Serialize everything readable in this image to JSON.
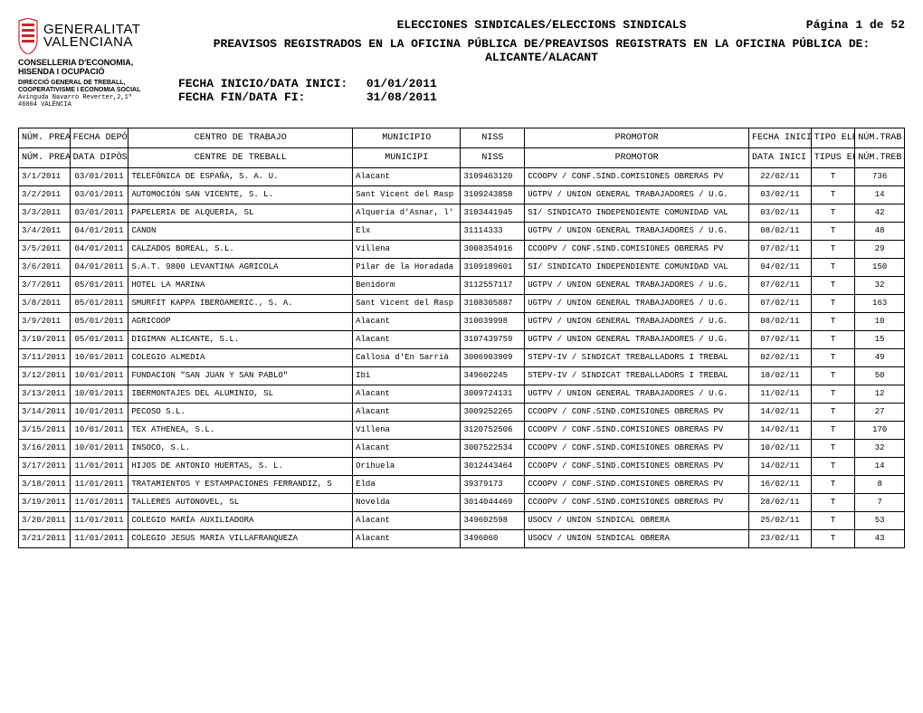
{
  "header": {
    "org_line1": "GENERALITAT",
    "org_line2": "VALENCIANA",
    "conselleria_l1": "CONSELLERIA D'ECONOMIA,",
    "conselleria_l2": "HISENDA I OCUPACIÓ",
    "direccio_l1": "DIRECCIÓ GENERAL DE TREBALL,",
    "direccio_l2": "COOPERATIVISME I ECONOMIA SOCIAL",
    "addr_l1": "Avinguda Navarro Reverter,2,1ª",
    "addr_l2": "46004 VALÈNCIA",
    "title": "ELECCIONES SINDICALES/ELECCIONS SINDICALS",
    "page_label": "Página 1 de 52",
    "subtitle": "PREAVISOS REGISTRADOS EN LA OFICINA PÚBLICA DE/PREAVISOS REGISTRATS EN LA OFICINA PÚBLICA DE:",
    "region": "ALICANTE/ALACANT",
    "date_start_label": "FECHA INICIO/DATA INICI:",
    "date_start_value": "01/01/2011",
    "date_end_label": "FECHA FIN/DATA FI:",
    "date_end_value": "31/08/2011"
  },
  "table": {
    "headers_es": {
      "preaviso": "NÚM. PREAVISO",
      "fecha": "FECHA DEPÓSITO",
      "centro": "CENTRO DE TRABAJO",
      "municipio": "MUNICIPIO",
      "niss": "NISS",
      "promotor": "PROMOTOR",
      "fecha_inicio": "FECHA INICIO ELECCIÓN",
      "tipo": "TIPO ELECCIÓN",
      "afectados": "NÚM.TRAB. AFECTADOS"
    },
    "headers_va": {
      "preaviso": "NÚM. PREAVÍS",
      "fecha": "DATA DIPÒSIT",
      "centro": "CENTRE DE TREBALL",
      "municipio": "MUNICIPI",
      "niss": "NISS",
      "promotor": "PROMOTOR",
      "fecha_inicio": "DATA INICI ELECCIÓ",
      "tipo": "TIPUS ELECCIÓ",
      "afectados": "NÚM.TREB. AFECTATS"
    },
    "rows": [
      {
        "preaviso": "3/1/2011",
        "fecha": "03/01/2011",
        "centro": "TELEFÓNICA DE ESPAÑA, S. A. U.",
        "municipio": "Alacant",
        "niss": "3109463120",
        "promotor": "CCOOPV / CONF.SIND.COMISIONES OBRERAS PV",
        "finicio": "22/02/11",
        "tipo": "T",
        "afec": "736"
      },
      {
        "preaviso": "3/2/2011",
        "fecha": "03/01/2011",
        "centro": "AUTOMOCIÓN SAN VICENTE, S. L.",
        "municipio": "Sant Vicent del Rasp",
        "niss": "3109243858",
        "promotor": "UGTPV / UNION GENERAL TRABAJADORES / U.G.",
        "finicio": "03/02/11",
        "tipo": "T",
        "afec": "14"
      },
      {
        "preaviso": "3/3/2011",
        "fecha": "03/01/2011",
        "centro": "PAPELERIA DE ALQUERIA, SL",
        "municipio": "Alqueria d'Asnar, l'",
        "niss": "3103441945",
        "promotor": "SI/ SINDICATO INDEPENDIENTE COMUNIDAD VAL",
        "finicio": "03/02/11",
        "tipo": "T",
        "afec": "42"
      },
      {
        "preaviso": "3/4/2011",
        "fecha": "04/01/2011",
        "centro": "CANON",
        "municipio": "Elx",
        "niss": "31114333",
        "promotor": "UGTPV / UNION GENERAL TRABAJADORES / U.G.",
        "finicio": "08/02/11",
        "tipo": "T",
        "afec": "48"
      },
      {
        "preaviso": "3/5/2011",
        "fecha": "04/01/2011",
        "centro": "CALZADOS BOREAL, S.L.",
        "municipio": "Villena",
        "niss": "3008354916",
        "promotor": "CCOOPV / CONF.SIND.COMISIONES OBRERAS PV",
        "finicio": "07/02/11",
        "tipo": "T",
        "afec": "29"
      },
      {
        "preaviso": "3/6/2011",
        "fecha": "04/01/2011",
        "centro": "S.A.T. 9800 LEVANTINA AGRICOLA",
        "municipio": "Pilar de la Horadada",
        "niss": "3109189601",
        "promotor": "SI/ SINDICATO INDEPENDIENTE COMUNIDAD VAL",
        "finicio": "04/02/11",
        "tipo": "T",
        "afec": "150"
      },
      {
        "preaviso": "3/7/2011",
        "fecha": "05/01/2011",
        "centro": "HOTEL LA MARINA",
        "municipio": "Benidorm",
        "niss": "3112557117",
        "promotor": "UGTPV / UNION GENERAL TRABAJADORES / U.G.",
        "finicio": "07/02/11",
        "tipo": "T",
        "afec": "32"
      },
      {
        "preaviso": "3/8/2011",
        "fecha": "05/01/2011",
        "centro": "SMURFIT KAPPA IBEROAMERIC., S. A.",
        "municipio": "Sant Vicent del Rasp",
        "niss": "3108305887",
        "promotor": "UGTPV / UNION GENERAL TRABAJADORES / U.G.",
        "finicio": "07/02/11",
        "tipo": "T",
        "afec": "163"
      },
      {
        "preaviso": "3/9/2011",
        "fecha": "05/01/2011",
        "centro": "AGRICOOP",
        "municipio": "Alacant",
        "niss": "310039998",
        "promotor": "UGTPV / UNION GENERAL TRABAJADORES / U.G.",
        "finicio": "08/02/11",
        "tipo": "T",
        "afec": "10"
      },
      {
        "preaviso": "3/10/2011",
        "fecha": "05/01/2011",
        "centro": "DIGIMAN ALICANTE, S.L.",
        "municipio": "Alacant",
        "niss": "3107439759",
        "promotor": "UGTPV / UNION GENERAL TRABAJADORES / U.G.",
        "finicio": "07/02/11",
        "tipo": "T",
        "afec": "15"
      },
      {
        "preaviso": "3/11/2011",
        "fecha": "10/01/2011",
        "centro": "COLEGIO ALMEDIA",
        "municipio": "Callosa d'En Sarrià",
        "niss": "3006903909",
        "promotor": "STEPV-IV / SINDICAT TREBALLADORS I TREBAL",
        "finicio": "02/02/11",
        "tipo": "T",
        "afec": "49"
      },
      {
        "preaviso": "3/12/2011",
        "fecha": "10/01/2011",
        "centro": "FUNDACION \"SAN JUAN Y SAN PABLO\"",
        "municipio": "Ibi",
        "niss": "349602245",
        "promotor": "STEPV-IV / SINDICAT TREBALLADORS I TREBAL",
        "finicio": "18/02/11",
        "tipo": "T",
        "afec": "50"
      },
      {
        "preaviso": "3/13/2011",
        "fecha": "10/01/2011",
        "centro": "IBERMONTAJES DEL ALUMINIO, SL",
        "municipio": "Alacant",
        "niss": "3009724131",
        "promotor": "UGTPV / UNION GENERAL TRABAJADORES / U.G.",
        "finicio": "11/02/11",
        "tipo": "T",
        "afec": "12"
      },
      {
        "preaviso": "3/14/2011",
        "fecha": "10/01/2011",
        "centro": "PECOSO S.L.",
        "municipio": "Alacant",
        "niss": "3009252265",
        "promotor": "CCOOPV / CONF.SIND.COMISIONES OBRERAS PV",
        "finicio": "14/02/11",
        "tipo": "T",
        "afec": "27"
      },
      {
        "preaviso": "3/15/2011",
        "fecha": "10/01/2011",
        "centro": "TEX ATHENEA, S.L.",
        "municipio": "Villena",
        "niss": "3120752506",
        "promotor": "CCOOPV / CONF.SIND.COMISIONES OBRERAS PV",
        "finicio": "14/02/11",
        "tipo": "T",
        "afec": "170"
      },
      {
        "preaviso": "3/16/2011",
        "fecha": "10/01/2011",
        "centro": "INSOCO, S.L.",
        "municipio": "Alacant",
        "niss": "3007522534",
        "promotor": "CCOOPV / CONF.SIND.COMISIONES OBRERAS PV",
        "finicio": "10/02/11",
        "tipo": "T",
        "afec": "32"
      },
      {
        "preaviso": "3/17/2011",
        "fecha": "11/01/2011",
        "centro": "HIJOS DE ANTONIO HUERTAS, S. L.",
        "municipio": "Orihuela",
        "niss": "3012443464",
        "promotor": "CCOOPV / CONF.SIND.COMISIONES OBRERAS PV",
        "finicio": "14/02/11",
        "tipo": "T",
        "afec": "14"
      },
      {
        "preaviso": "3/18/2011",
        "fecha": "11/01/2011",
        "centro": "TRATAMIENTOS Y ESTAMPACIONES FERRANDIZ, S",
        "municipio": "Elda",
        "niss": "39379173",
        "promotor": "CCOOPV / CONF.SIND.COMISIONES OBRERAS PV",
        "finicio": "16/02/11",
        "tipo": "T",
        "afec": "8"
      },
      {
        "preaviso": "3/19/2011",
        "fecha": "11/01/2011",
        "centro": "TALLERES AUTONOVEL, SL",
        "municipio": "Novelda",
        "niss": "3014044469",
        "promotor": "CCOOPV / CONF.SIND.COMISIONES OBRERAS PV",
        "finicio": "28/02/11",
        "tipo": "T",
        "afec": "7"
      },
      {
        "preaviso": "3/20/2011",
        "fecha": "11/01/2011",
        "centro": "COLEGIO MARÍA AUXILIADORA",
        "municipio": "Alacant",
        "niss": "349602598",
        "promotor": "USOCV / UNION SINDICAL OBRERA",
        "finicio": "25/02/11",
        "tipo": "T",
        "afec": "53"
      },
      {
        "preaviso": "3/21/2011",
        "fecha": "11/01/2011",
        "centro": "COLEGIO JESUS MARIA VILLAFRANQUEZA",
        "municipio": "Alacant",
        "niss": "3496060",
        "promotor": "USOCV / UNION SINDICAL OBRERA",
        "finicio": "23/02/11",
        "tipo": "T",
        "afec": "43"
      }
    ]
  },
  "colors": {
    "crest": "#c2282d",
    "text": "#000000",
    "background": "#ffffff"
  }
}
